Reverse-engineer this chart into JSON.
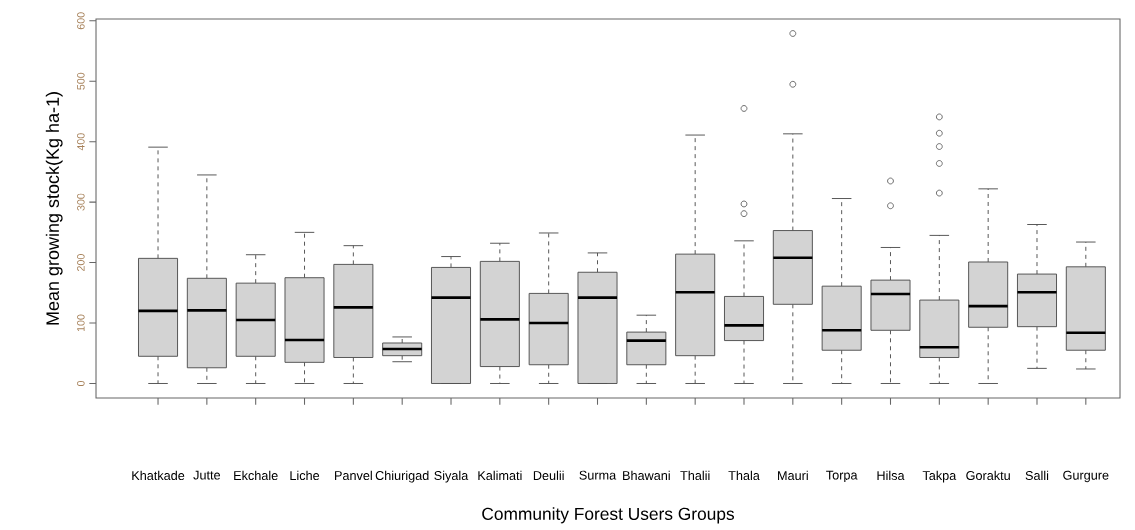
{
  "chart_data": {
    "type": "box",
    "xlabel": "Community Forest Users Groups",
    "ylabel": "Mean growing stock(Kg ha-1)",
    "categories": [
      "Khatkade",
      "Jutte",
      "Ekchale",
      "Liche",
      "Panvel",
      "Chiurigad",
      "Siyala",
      "Kalimati",
      "Deulii",
      "Surma",
      "Bhawani",
      "Thalii",
      "Thala",
      "Mauri",
      "Torpa",
      "Hilsa",
      "Takpa",
      "Goraktu",
      "Salli",
      "Gurgure"
    ],
    "color": "#d3d3d3",
    "ylim": [
      -24,
      603
    ],
    "yticks": [
      0,
      100,
      200,
      300,
      400,
      500,
      600
    ],
    "boxes": [
      {
        "low": 0,
        "q1": 45,
        "median": 120,
        "q3": 207,
        "high": 391
      },
      {
        "low": 0,
        "q1": 26,
        "median": 121,
        "q3": 174,
        "high": 345
      },
      {
        "low": 0,
        "q1": 45,
        "median": 105,
        "q3": 166,
        "high": 213
      },
      {
        "low": 0,
        "q1": 35,
        "median": 72,
        "q3": 175,
        "high": 250
      },
      {
        "low": 0,
        "q1": 43,
        "median": 126,
        "q3": 197,
        "high": 228
      },
      {
        "low": 36,
        "q1": 46,
        "median": 57,
        "q3": 67,
        "high": 77
      },
      {
        "low": 0,
        "q1": 0,
        "median": 142,
        "q3": 192,
        "high": 210
      },
      {
        "low": 0,
        "q1": 28,
        "median": 106,
        "q3": 202,
        "high": 232
      },
      {
        "low": 0,
        "q1": 31,
        "median": 100,
        "q3": 149,
        "high": 249
      },
      {
        "low": 0,
        "q1": 0,
        "median": 142,
        "q3": 184,
        "high": 216
      },
      {
        "low": 0,
        "q1": 31,
        "median": 71,
        "q3": 85,
        "high": 113
      },
      {
        "low": 0,
        "q1": 46,
        "median": 151,
        "q3": 214,
        "high": 411
      },
      {
        "low": 0,
        "q1": 71,
        "median": 96,
        "q3": 144,
        "high": 236,
        "outliers": [
          281,
          297,
          455
        ]
      },
      {
        "low": 0,
        "q1": 131,
        "median": 208,
        "q3": 253,
        "high": 413,
        "outliers": [
          495,
          579
        ]
      },
      {
        "low": 0,
        "q1": 55,
        "median": 88,
        "q3": 161,
        "high": 306
      },
      {
        "low": 0,
        "q1": 88,
        "median": 148,
        "q3": 171,
        "high": 225,
        "outliers": [
          294,
          335
        ]
      },
      {
        "low": 0,
        "q1": 43,
        "median": 60,
        "q3": 138,
        "high": 245,
        "outliers": [
          315,
          364,
          392,
          414,
          441
        ]
      },
      {
        "low": 0,
        "q1": 93,
        "median": 128,
        "q3": 201,
        "high": 322
      },
      {
        "low": 25,
        "q1": 94,
        "median": 151,
        "q3": 181,
        "high": 263
      },
      {
        "low": 24,
        "q1": 55,
        "median": 84,
        "q3": 193,
        "high": 234
      }
    ]
  }
}
